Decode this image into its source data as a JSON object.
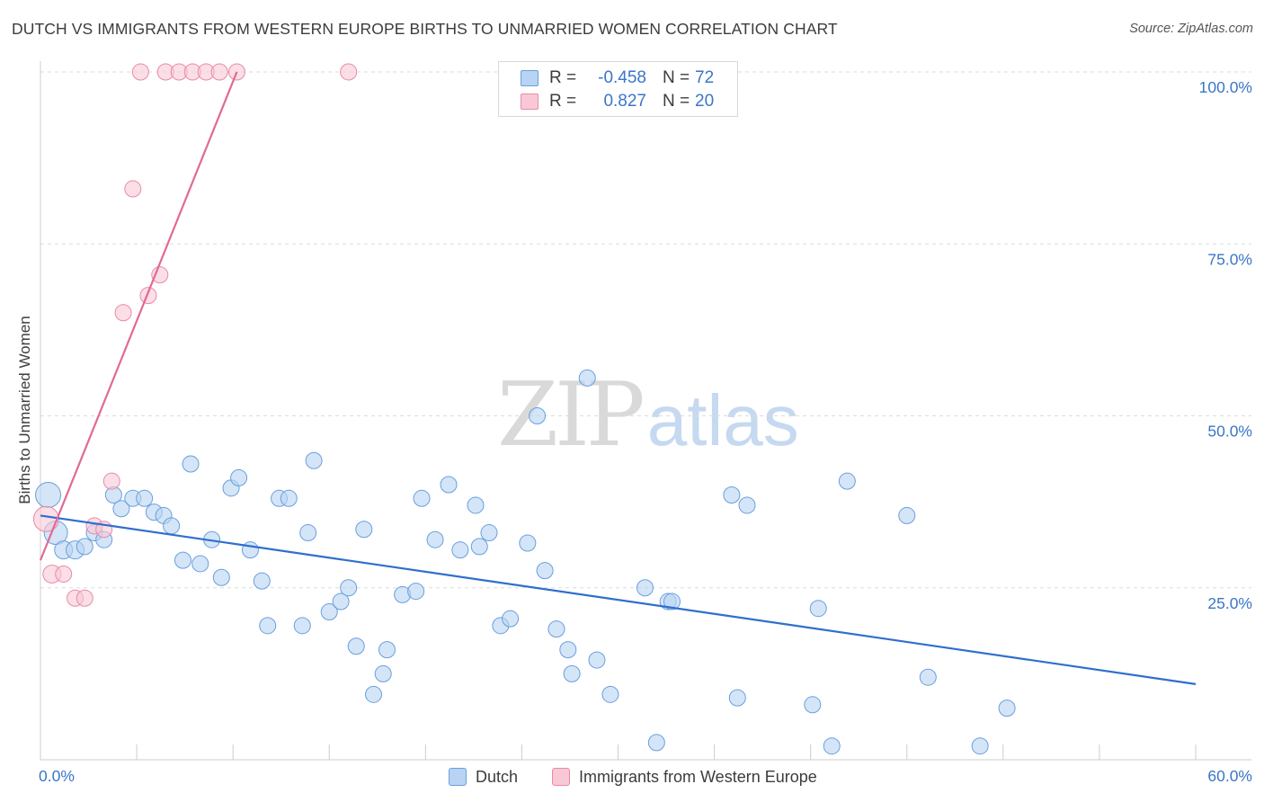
{
  "title": "DUTCH VS IMMIGRANTS FROM WESTERN EUROPE BIRTHS TO UNMARRIED WOMEN CORRELATION CHART",
  "source": "Source: ZipAtlas.com",
  "watermark": {
    "zip": "ZIP",
    "atlas": "atlas"
  },
  "legend": {
    "rows": [
      {
        "r_label": "R =",
        "r_value": "-0.458",
        "n_label": "N =",
        "n_value": "72",
        "fill": "#b8d3f4",
        "stroke": "#6a9fdc"
      },
      {
        "r_label": "R =",
        "r_value": "0.827",
        "n_label": "N =",
        "n_value": "20",
        "fill": "#f9c8d6",
        "stroke": "#e88aa6"
      }
    ]
  },
  "bottom_legend": [
    {
      "label": "Dutch",
      "fill": "#b8d3f4",
      "stroke": "#6a9fdc"
    },
    {
      "label": "Immigrants from Western Europe",
      "fill": "#f9c8d6",
      "stroke": "#e88aa6"
    }
  ],
  "chart_data": {
    "type": "scatter",
    "title": "DUTCH VS IMMIGRANTS FROM WESTERN EUROPE BIRTHS TO UNMARRIED WOMEN CORRELATION CHART",
    "xlabel": "",
    "ylabel": "Births to Unmarried Women",
    "xlim": [
      0,
      60
    ],
    "ylim": [
      0,
      100
    ],
    "x_tick_labels": [
      {
        "value": 0,
        "label": "0.0%"
      },
      {
        "value": 60,
        "label": "60.0%"
      }
    ],
    "y_tick_labels": [
      {
        "value": 25,
        "label": "25.0%"
      },
      {
        "value": 50,
        "label": "50.0%"
      },
      {
        "value": 75,
        "label": "75.0%"
      },
      {
        "value": 100,
        "label": "100.0%"
      }
    ],
    "grid": true,
    "legend_position": "top-center",
    "series": [
      {
        "name": "Dutch",
        "color": "#6a9fdc",
        "fill": "#b8d3f4",
        "trend": {
          "x": [
            0,
            60
          ],
          "y": [
            35.5,
            11.0
          ],
          "color": "#2f6fcc"
        },
        "points": [
          {
            "x": 0.4,
            "y": 38.5,
            "size": 14
          },
          {
            "x": 0.8,
            "y": 33.0,
            "size": 13
          },
          {
            "x": 1.2,
            "y": 30.5,
            "size": 10
          },
          {
            "x": 1.8,
            "y": 30.5,
            "size": 10
          },
          {
            "x": 2.3,
            "y": 31.0,
            "size": 9
          },
          {
            "x": 2.8,
            "y": 33.0,
            "size": 9
          },
          {
            "x": 3.3,
            "y": 32.0,
            "size": 9
          },
          {
            "x": 3.8,
            "y": 38.5,
            "size": 9
          },
          {
            "x": 4.2,
            "y": 36.5,
            "size": 9
          },
          {
            "x": 4.8,
            "y": 38.0,
            "size": 9
          },
          {
            "x": 5.4,
            "y": 38.0,
            "size": 9
          },
          {
            "x": 5.9,
            "y": 36.0,
            "size": 9
          },
          {
            "x": 6.4,
            "y": 35.5,
            "size": 9
          },
          {
            "x": 6.8,
            "y": 34.0,
            "size": 9
          },
          {
            "x": 7.4,
            "y": 29.0,
            "size": 9
          },
          {
            "x": 7.8,
            "y": 43.0,
            "size": 9
          },
          {
            "x": 8.3,
            "y": 28.5,
            "size": 9
          },
          {
            "x": 8.9,
            "y": 32.0,
            "size": 9
          },
          {
            "x": 9.4,
            "y": 26.5,
            "size": 9
          },
          {
            "x": 9.9,
            "y": 39.5,
            "size": 9
          },
          {
            "x": 10.3,
            "y": 41.0,
            "size": 9
          },
          {
            "x": 10.9,
            "y": 30.5,
            "size": 9
          },
          {
            "x": 11.5,
            "y": 26.0,
            "size": 9
          },
          {
            "x": 11.8,
            "y": 19.5,
            "size": 9
          },
          {
            "x": 12.4,
            "y": 38.0,
            "size": 9
          },
          {
            "x": 12.9,
            "y": 38.0,
            "size": 9
          },
          {
            "x": 13.6,
            "y": 19.5,
            "size": 9
          },
          {
            "x": 13.9,
            "y": 33.0,
            "size": 9
          },
          {
            "x": 14.2,
            "y": 43.5,
            "size": 9
          },
          {
            "x": 15.0,
            "y": 21.5,
            "size": 9
          },
          {
            "x": 15.6,
            "y": 23.0,
            "size": 9
          },
          {
            "x": 16.0,
            "y": 25.0,
            "size": 9
          },
          {
            "x": 16.4,
            "y": 16.5,
            "size": 9
          },
          {
            "x": 16.8,
            "y": 33.5,
            "size": 9
          },
          {
            "x": 17.3,
            "y": 9.5,
            "size": 9
          },
          {
            "x": 17.8,
            "y": 12.5,
            "size": 9
          },
          {
            "x": 18.0,
            "y": 16.0,
            "size": 9
          },
          {
            "x": 18.8,
            "y": 24.0,
            "size": 9
          },
          {
            "x": 19.5,
            "y": 24.5,
            "size": 9
          },
          {
            "x": 19.8,
            "y": 38.0,
            "size": 9
          },
          {
            "x": 20.5,
            "y": 32.0,
            "size": 9
          },
          {
            "x": 21.2,
            "y": 40.0,
            "size": 9
          },
          {
            "x": 21.8,
            "y": 30.5,
            "size": 9
          },
          {
            "x": 22.6,
            "y": 37.0,
            "size": 9
          },
          {
            "x": 22.8,
            "y": 31.0,
            "size": 9
          },
          {
            "x": 23.3,
            "y": 33.0,
            "size": 9
          },
          {
            "x": 23.9,
            "y": 19.5,
            "size": 9
          },
          {
            "x": 24.4,
            "y": 20.5,
            "size": 9
          },
          {
            "x": 25.3,
            "y": 31.5,
            "size": 9
          },
          {
            "x": 25.8,
            "y": 50.0,
            "size": 9
          },
          {
            "x": 26.2,
            "y": 27.5,
            "size": 9
          },
          {
            "x": 26.8,
            "y": 19.0,
            "size": 9
          },
          {
            "x": 27.4,
            "y": 16.0,
            "size": 9
          },
          {
            "x": 27.6,
            "y": 12.5,
            "size": 9
          },
          {
            "x": 28.4,
            "y": 55.5,
            "size": 9
          },
          {
            "x": 28.9,
            "y": 14.5,
            "size": 9
          },
          {
            "x": 29.6,
            "y": 9.5,
            "size": 9
          },
          {
            "x": 31.4,
            "y": 25.0,
            "size": 9
          },
          {
            "x": 32.0,
            "y": 2.5,
            "size": 9
          },
          {
            "x": 32.6,
            "y": 23.0,
            "size": 9
          },
          {
            "x": 32.8,
            "y": 23.0,
            "size": 9
          },
          {
            "x": 35.9,
            "y": 38.5,
            "size": 9
          },
          {
            "x": 36.2,
            "y": 9.0,
            "size": 9
          },
          {
            "x": 36.7,
            "y": 37.0,
            "size": 9
          },
          {
            "x": 40.1,
            "y": 8.0,
            "size": 9
          },
          {
            "x": 40.4,
            "y": 22.0,
            "size": 9
          },
          {
            "x": 41.1,
            "y": 2.0,
            "size": 9
          },
          {
            "x": 41.9,
            "y": 40.5,
            "size": 9
          },
          {
            "x": 45.0,
            "y": 35.5,
            "size": 9
          },
          {
            "x": 46.1,
            "y": 12.0,
            "size": 9
          },
          {
            "x": 48.8,
            "y": 2.0,
            "size": 9
          },
          {
            "x": 50.2,
            "y": 7.5,
            "size": 9
          }
        ]
      },
      {
        "name": "Immigrants from Western Europe",
        "color": "#e88aa6",
        "fill": "#f9c8d6",
        "trend": {
          "x": [
            0,
            10.2
          ],
          "y": [
            29.0,
            100.0
          ],
          "color": "#e06a95"
        },
        "points": [
          {
            "x": 0.3,
            "y": 35.0,
            "size": 14
          },
          {
            "x": 0.6,
            "y": 27.0,
            "size": 10
          },
          {
            "x": 1.2,
            "y": 27.0,
            "size": 9
          },
          {
            "x": 1.8,
            "y": 23.5,
            "size": 9
          },
          {
            "x": 2.3,
            "y": 23.5,
            "size": 9
          },
          {
            "x": 2.8,
            "y": 34.0,
            "size": 9
          },
          {
            "x": 3.3,
            "y": 33.5,
            "size": 9
          },
          {
            "x": 3.7,
            "y": 40.5,
            "size": 9
          },
          {
            "x": 4.3,
            "y": 65.0,
            "size": 9
          },
          {
            "x": 4.8,
            "y": 83.0,
            "size": 9
          },
          {
            "x": 5.6,
            "y": 67.5,
            "size": 9
          },
          {
            "x": 6.2,
            "y": 70.5,
            "size": 9
          },
          {
            "x": 5.2,
            "y": 100.0,
            "size": 9
          },
          {
            "x": 6.5,
            "y": 100.0,
            "size": 9
          },
          {
            "x": 7.2,
            "y": 100.0,
            "size": 9
          },
          {
            "x": 7.9,
            "y": 100.0,
            "size": 9
          },
          {
            "x": 8.6,
            "y": 100.0,
            "size": 9
          },
          {
            "x": 9.3,
            "y": 100.0,
            "size": 9
          },
          {
            "x": 10.2,
            "y": 100.0,
            "size": 9
          },
          {
            "x": 16.0,
            "y": 100.0,
            "size": 9
          }
        ]
      }
    ]
  }
}
